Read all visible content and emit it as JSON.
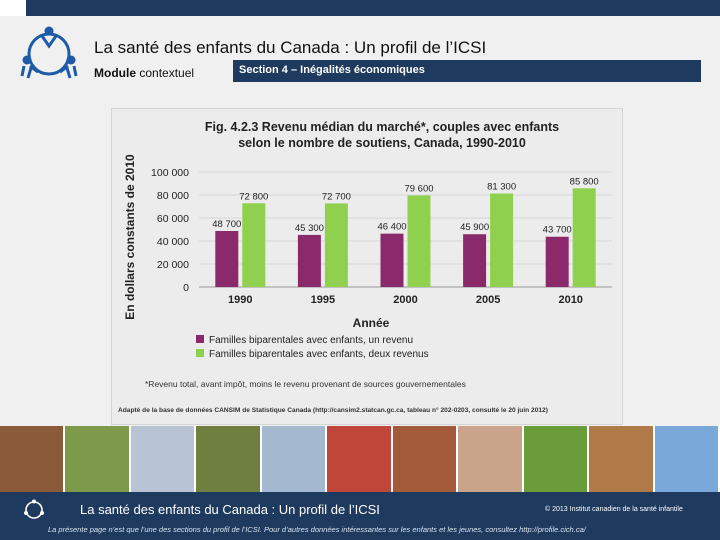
{
  "header": {
    "title": "La santé des enfants du Canada : Un profil de l’ICSI",
    "module_bold": "Module",
    "module_rest": "contextuel",
    "section": "Section 4 – Inégalités économiques"
  },
  "chart_data": {
    "type": "bar",
    "title_line1": "Fig. 4.2.3  Revenu médian du marché*, couples avec enfants",
    "title_line2": "selon le nombre de soutiens, Canada, 1990-2010",
    "ylabel": "En dollars constants de 2010",
    "xlabel": "Année",
    "categories": [
      "1990",
      "1995",
      "2000",
      "2005",
      "2010"
    ],
    "ylim": [
      0,
      100000
    ],
    "yticks": [
      "0",
      "20 000",
      "40 000",
      "60 000",
      "80 000",
      "100 000"
    ],
    "series": [
      {
        "name": "Familles biparentales avec enfants, un revenu",
        "color": "#8a2a6b",
        "values": [
          48700,
          45300,
          46400,
          45900,
          43700
        ],
        "labels": [
          "48 700",
          "45 300",
          "46 400",
          "45 900",
          "43 700"
        ]
      },
      {
        "name": "Familles biparentales avec enfants, deux revenus",
        "color": "#8fd14f",
        "values": [
          72800,
          72700,
          79600,
          81300,
          85800
        ],
        "labels": [
          "72 800",
          "72 700",
          "79 600",
          "81 300",
          "85 800"
        ]
      }
    ],
    "note": "*Revenu total, avant impôt, moins le revenu provenant de sources gouvernementales",
    "source": "Adapté de la base de données CANSIM de Statistique Canada (http://cansim2.statcan.gc.ca, tableau n° 202-0203, consulté le 20 juin 2012)"
  },
  "photos": [
    "#8a5a3a",
    "#7c9a4a",
    "#b8c4d4",
    "#6f7f3f",
    "#a4b8d0",
    "#c0463a",
    "#a35a3a",
    "#c9a48a",
    "#6a9c3a",
    "#b07a48",
    "#7aa8d8"
  ],
  "footer": {
    "title": "La santé des enfants du Canada : Un profil de l’ICSI",
    "copyright": "© 2013  Institut canadien de la santé infantile",
    "note": "La présente page n’est que l’une des sections du profil de l’ICSI. Pour d’autres données intéressantes sur les enfants et les jeunes, consultez http://profile.cich.ca/"
  }
}
